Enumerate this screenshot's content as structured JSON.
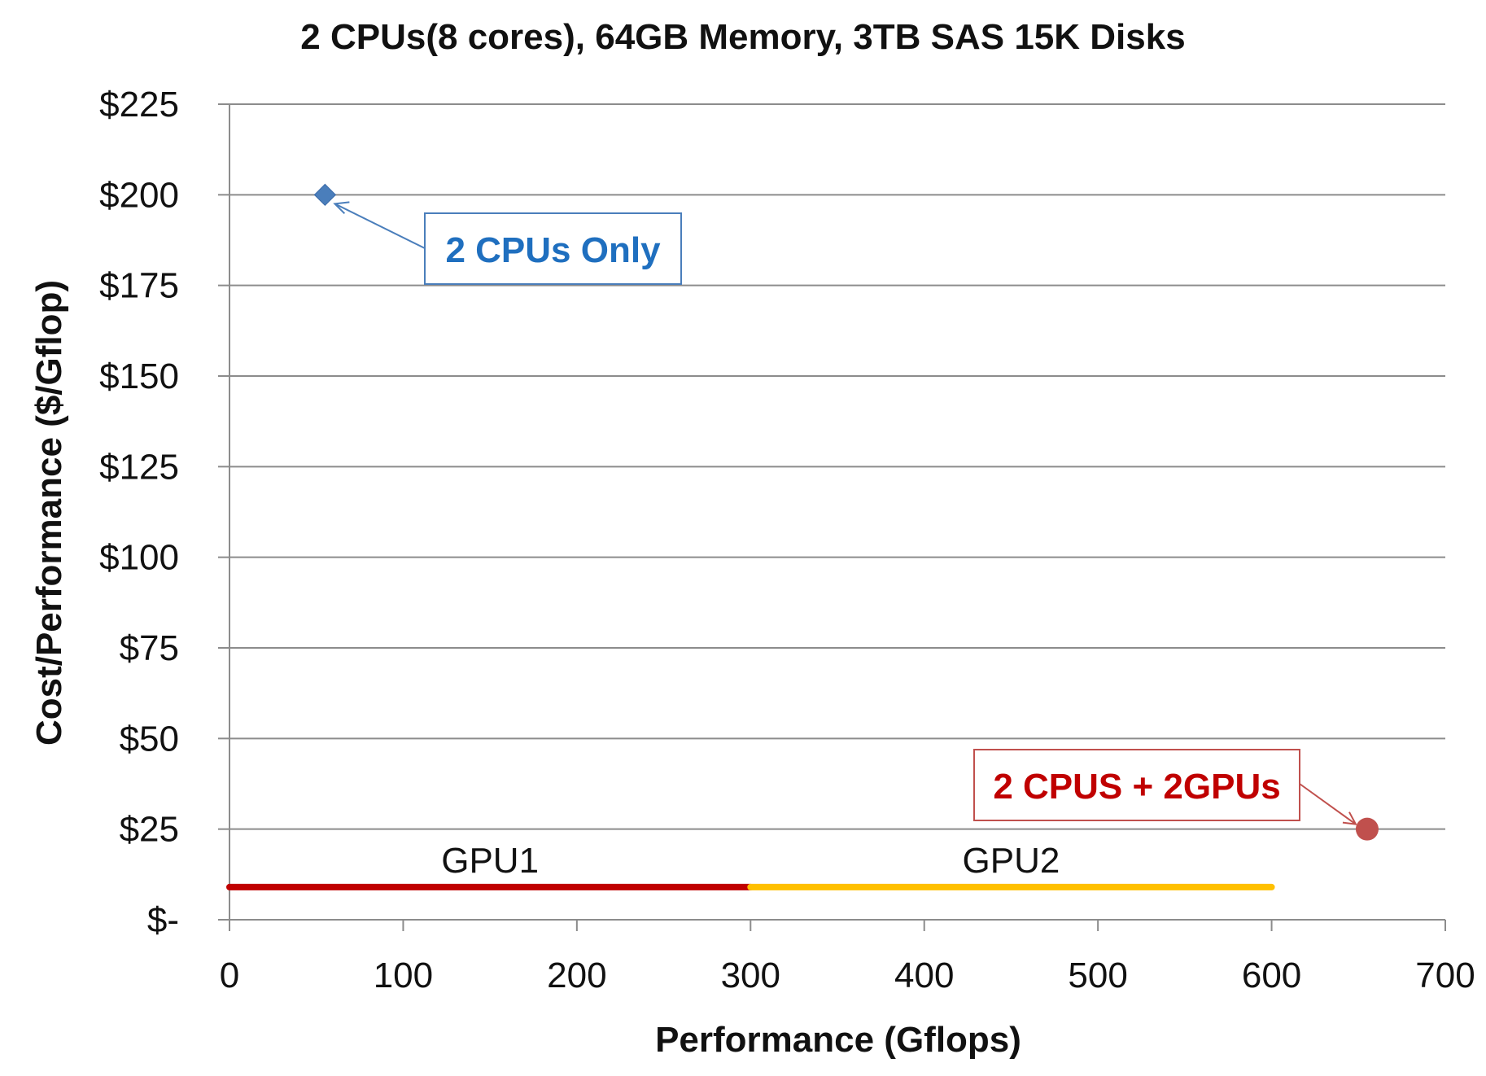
{
  "chart_data": {
    "type": "scatter",
    "title": "2 CPUs(8 cores), 64GB Memory, 3TB SAS 15K Disks",
    "xlabel": "Performance (Gflops)",
    "ylabel": "Cost/Performance ($/Gflop)",
    "xlim": [
      0,
      700
    ],
    "ylim": [
      0,
      225
    ],
    "x_ticks": [
      0,
      100,
      200,
      300,
      400,
      500,
      600,
      700
    ],
    "x_tick_labels": [
      "0",
      "100",
      "200",
      "300",
      "400",
      "500",
      "600",
      "700"
    ],
    "y_ticks": [
      0,
      25,
      50,
      75,
      100,
      125,
      150,
      175,
      200,
      225
    ],
    "y_tick_labels": [
      "$-",
      "$25",
      "$50",
      "$75",
      "$100",
      "$125",
      "$150",
      "$175",
      "$200",
      "$225"
    ],
    "grid": "horizontal",
    "series": [
      {
        "label": "2 CPUs Only",
        "marker": "diamond",
        "color": "#4a7ebb",
        "points": [
          {
            "x": 55,
            "y": 200
          }
        ]
      },
      {
        "label": "2 CPUS + 2GPUs",
        "marker": "circle",
        "color": "#c0504d",
        "points": [
          {
            "x": 655,
            "y": 25
          }
        ]
      }
    ],
    "ranges": [
      {
        "label": "GPU1",
        "x_start": 0,
        "x_end": 300,
        "y": 9,
        "color": "#c00000"
      },
      {
        "label": "GPU2",
        "x_start": 300,
        "x_end": 600,
        "y": 9,
        "color": "#ffc000"
      }
    ],
    "callout_colors": {
      "2 CPUs Only": "#1f6fbf",
      "2 CPUS + 2GPUs": "#c00000"
    }
  }
}
